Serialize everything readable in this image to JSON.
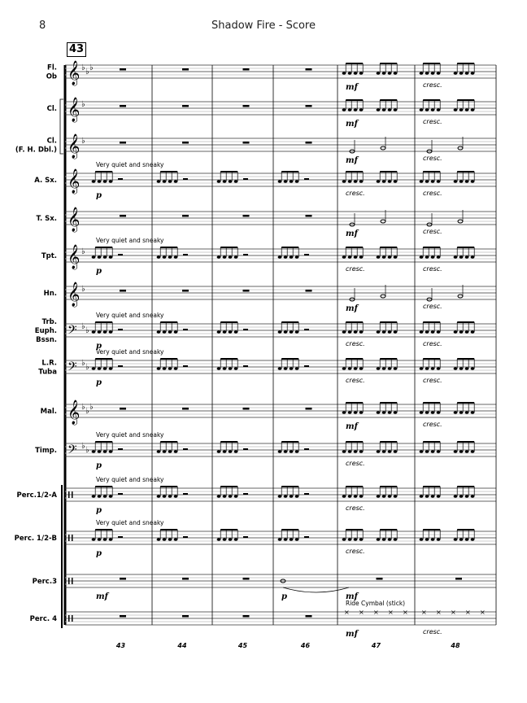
{
  "header": {
    "page_number": "8",
    "title": "Shadow Fire - Score",
    "rehearsal_mark": "43"
  },
  "instruments": [
    {
      "id": "fl",
      "label": [
        "Fl.",
        "Ob"
      ],
      "clef": "treble",
      "key_flats": 3,
      "pattern": [
        "rest",
        "rest",
        "rest",
        "rest",
        "eighths",
        "eighths"
      ]
    },
    {
      "id": "cl",
      "label": [
        "Cl."
      ],
      "clef": "treble",
      "key_flats": 1,
      "pattern": [
        "rest",
        "rest",
        "rest",
        "rest",
        "eighths",
        "eighths"
      ]
    },
    {
      "id": "clfh",
      "label": [
        "Cl.",
        "(F. H. Dbl.)"
      ],
      "clef": "treble",
      "key_flats": 1,
      "pattern": [
        "rest",
        "rest",
        "rest",
        "rest",
        "halves",
        "halves"
      ]
    },
    {
      "id": "asx",
      "label": [
        "A. Sx."
      ],
      "clef": "treble",
      "key_flats": 0,
      "pattern": [
        "eighths",
        "eighths",
        "eighths",
        "eighths",
        "eighths",
        "eighths"
      ]
    },
    {
      "id": "tsx",
      "label": [
        "T. Sx."
      ],
      "clef": "treble",
      "key_flats": 0,
      "pattern": [
        "rest",
        "rest",
        "rest",
        "rest",
        "halves",
        "halves"
      ]
    },
    {
      "id": "tpt",
      "label": [
        "Tpt."
      ],
      "clef": "treble",
      "key_flats": 1,
      "pattern": [
        "eighths",
        "eighths",
        "eighths",
        "eighths",
        "eighths",
        "eighths"
      ]
    },
    {
      "id": "hn",
      "label": [
        "Hn."
      ],
      "clef": "treble",
      "key_flats": 1,
      "pattern": [
        "rest",
        "rest",
        "rest",
        "rest",
        "halves",
        "halves"
      ]
    },
    {
      "id": "trb",
      "label": [
        "Trb.",
        "Euph.",
        "Bssn."
      ],
      "clef": "bass",
      "key_flats": 2,
      "pattern": [
        "eighths",
        "eighths",
        "eighths",
        "eighths",
        "eighths",
        "eighths"
      ]
    },
    {
      "id": "tuba",
      "label": [
        "L.R.",
        "Tuba"
      ],
      "clef": "bass",
      "key_flats": 2,
      "pattern": [
        "eighths",
        "eighths",
        "eighths",
        "eighths",
        "eighths",
        "eighths"
      ]
    },
    {
      "id": "mal",
      "label": [
        "Mal."
      ],
      "clef": "treble",
      "key_flats": 3,
      "pattern": [
        "rest",
        "rest",
        "rest",
        "rest",
        "eighths",
        "eighths"
      ]
    },
    {
      "id": "timp",
      "label": [
        "Timp."
      ],
      "clef": "bass",
      "key_flats": 2,
      "pattern": [
        "eighths",
        "eighths",
        "eighths",
        "eighths",
        "eighths",
        "eighths"
      ]
    },
    {
      "id": "perca",
      "label": [
        "Perc.1/2-A"
      ],
      "clef": "perc",
      "key_flats": 0,
      "pattern": [
        "eighths",
        "eighths",
        "eighths",
        "eighths",
        "eighths",
        "eighths"
      ]
    },
    {
      "id": "percb",
      "label": [
        "Perc. 1/2-B"
      ],
      "clef": "perc",
      "key_flats": 0,
      "pattern": [
        "eighths",
        "eighths",
        "eighths",
        "eighths",
        "eighths",
        "eighths"
      ]
    },
    {
      "id": "perc3",
      "label": [
        "Perc.3"
      ],
      "clef": "perc",
      "key_flats": 0,
      "pattern": [
        "rest",
        "rest",
        "rest",
        "roll",
        "rest",
        "rest"
      ]
    },
    {
      "id": "perc4",
      "label": [
        "Perc. 4"
      ],
      "clef": "perc",
      "key_flats": 0,
      "pattern": [
        "rest",
        "rest",
        "rest",
        "rest",
        "crosses",
        "crosses"
      ]
    }
  ],
  "measure_numbers": [
    "43",
    "44",
    "45",
    "46",
    "47",
    "48"
  ],
  "annotations": [
    {
      "text": "Very quiet and sneaky",
      "kind": "ann",
      "staff": "asx",
      "measure": 0,
      "place": "above"
    },
    {
      "text": "Very quiet and sneaky",
      "kind": "ann",
      "staff": "tpt",
      "measure": 0,
      "place": "above"
    },
    {
      "text": "Very quiet and sneaky",
      "kind": "ann",
      "staff": "trb",
      "measure": 0,
      "place": "above"
    },
    {
      "text": "Very quiet and sneaky",
      "kind": "ann",
      "staff": "tuba",
      "measure": 0,
      "place": "above"
    },
    {
      "text": "Very quiet and sneaky",
      "kind": "ann",
      "staff": "timp",
      "measure": 0,
      "place": "above"
    },
    {
      "text": "Very quiet and sneaky",
      "kind": "ann",
      "staff": "perca",
      "measure": 0,
      "place": "above"
    },
    {
      "text": "Very quiet and sneaky",
      "kind": "ann",
      "staff": "percb",
      "measure": 0,
      "place": "above"
    },
    {
      "text": "p",
      "kind": "dyn",
      "staff": "asx",
      "measure": 0,
      "place": "below"
    },
    {
      "text": "p",
      "kind": "dyn",
      "staff": "tpt",
      "measure": 0,
      "place": "below"
    },
    {
      "text": "p",
      "kind": "dyn",
      "staff": "trb",
      "measure": 0,
      "place": "below"
    },
    {
      "text": "p",
      "kind": "dyn",
      "staff": "tuba",
      "measure": 0,
      "place": "below"
    },
    {
      "text": "p",
      "kind": "dyn",
      "staff": "timp",
      "measure": 0,
      "place": "below"
    },
    {
      "text": "p",
      "kind": "dyn",
      "staff": "perca",
      "measure": 0,
      "place": "below"
    },
    {
      "text": "p",
      "kind": "dyn",
      "staff": "percb",
      "measure": 0,
      "place": "below"
    },
    {
      "text": "mf",
      "kind": "dyn",
      "staff": "perc3",
      "measure": 0,
      "place": "below"
    },
    {
      "text": "p",
      "kind": "dyn",
      "staff": "perc3",
      "measure": 3,
      "place": "below"
    },
    {
      "text": "mf",
      "kind": "dyn",
      "staff": "fl",
      "measure": 4,
      "place": "below"
    },
    {
      "text": "mf",
      "kind": "dyn",
      "staff": "cl",
      "measure": 4,
      "place": "below"
    },
    {
      "text": "mf",
      "kind": "dyn",
      "staff": "clfh",
      "measure": 4,
      "place": "below"
    },
    {
      "text": "mf",
      "kind": "dyn",
      "staff": "tsx",
      "measure": 4,
      "place": "below"
    },
    {
      "text": "mf",
      "kind": "dyn",
      "staff": "hn",
      "measure": 4,
      "place": "below"
    },
    {
      "text": "mf",
      "kind": "dyn",
      "staff": "mal",
      "measure": 4,
      "place": "below"
    },
    {
      "text": "mf",
      "kind": "dyn",
      "staff": "perc3",
      "measure": 4,
      "place": "below"
    },
    {
      "text": "mf",
      "kind": "dyn",
      "staff": "perc4",
      "measure": 4,
      "place": "below"
    },
    {
      "text": "Ride Cymbal (stick)",
      "kind": "ann",
      "staff": "perc4",
      "measure": 4,
      "place": "above"
    },
    {
      "text": "cresc.",
      "kind": "cr",
      "staff": "asx",
      "measure": 4,
      "place": "below"
    },
    {
      "text": "cresc.",
      "kind": "cr",
      "staff": "tpt",
      "measure": 4,
      "place": "below"
    },
    {
      "text": "cresc.",
      "kind": "cr",
      "staff": "trb",
      "measure": 4,
      "place": "below"
    },
    {
      "text": "cresc.",
      "kind": "cr",
      "staff": "tuba",
      "measure": 4,
      "place": "below"
    },
    {
      "text": "cresc.",
      "kind": "cr",
      "staff": "timp",
      "measure": 4,
      "place": "below"
    },
    {
      "text": "cresc.",
      "kind": "cr",
      "staff": "perca",
      "measure": 4,
      "place": "below"
    },
    {
      "text": "cresc.",
      "kind": "cr",
      "staff": "percb",
      "measure": 4,
      "place": "below"
    },
    {
      "text": "cresc.",
      "kind": "cr",
      "staff": "fl",
      "measure": 5,
      "place": "below"
    },
    {
      "text": "cresc.",
      "kind": "cr",
      "staff": "cl",
      "measure": 5,
      "place": "below"
    },
    {
      "text": "cresc.",
      "kind": "cr",
      "staff": "clfh",
      "measure": 5,
      "place": "below"
    },
    {
      "text": "cresc.",
      "kind": "cr",
      "staff": "asx",
      "measure": 5,
      "place": "below"
    },
    {
      "text": "cresc.",
      "kind": "cr",
      "staff": "tsx",
      "measure": 5,
      "place": "below"
    },
    {
      "text": "cresc.",
      "kind": "cr",
      "staff": "tpt",
      "measure": 5,
      "place": "below"
    },
    {
      "text": "cresc.",
      "kind": "cr",
      "staff": "hn",
      "measure": 5,
      "place": "below"
    },
    {
      "text": "cresc.",
      "kind": "cr",
      "staff": "trb",
      "measure": 5,
      "place": "below"
    },
    {
      "text": "cresc.",
      "kind": "cr",
      "staff": "tuba",
      "measure": 5,
      "place": "below"
    },
    {
      "text": "cresc.",
      "kind": "cr",
      "staff": "mal",
      "measure": 5,
      "place": "below"
    },
    {
      "text": "cresc.",
      "kind": "cr",
      "staff": "perc4",
      "measure": 5,
      "place": "below"
    }
  ]
}
